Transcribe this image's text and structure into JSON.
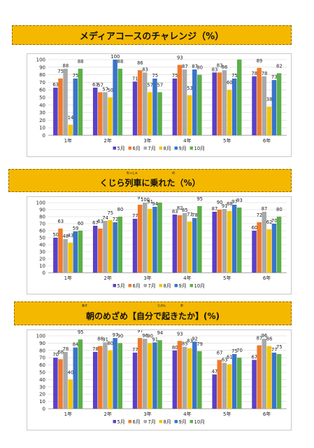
{
  "charts": [
    {
      "title": "メディアコースのチャレンジ（%）",
      "chart_data": {
        "type": "bar",
        "categories": [
          "1年",
          "2年",
          "3年",
          "4年",
          "5年",
          "6年"
        ],
        "series": [
          {
            "name": "5月",
            "values": [
              63,
              63,
              71,
              75,
              83,
              78
            ]
          },
          {
            "name": "6月",
            "values": [
              75,
              57,
              86,
              93,
              83,
              89
            ]
          },
          {
            "name": "7月",
            "values": [
              88,
              57,
              83,
              87,
              86,
              78
            ]
          },
          {
            "name": "8月",
            "values": [
              14,
              50,
              57,
              53,
              60,
              38
            ]
          },
          {
            "name": "9月",
            "values": [
              75,
              100,
              75,
              87,
              75,
              73
            ]
          },
          {
            "name": "10月",
            "values": [
              88,
              88,
              57,
              80,
              100,
              82
            ]
          }
        ],
        "ylim": [
          0,
          100
        ],
        "yticks": [
          0,
          10,
          20,
          30,
          40,
          50,
          60,
          70,
          80,
          90,
          100
        ],
        "colors": [
          "#5b40c8",
          "#f07a2a",
          "#a9a9a9",
          "#f5c400",
          "#3a74c8",
          "#5cb04a"
        ],
        "legend": "bottom"
      }
    },
    {
      "title": "くじら列車に乗れた（%）",
      "ruby": [
        {
          "text": "れっしゃ"
        },
        {
          "text": "の"
        }
      ],
      "chart_data": {
        "type": "bar",
        "categories": [
          "1年",
          "2年",
          "3年",
          "4年",
          "5年",
          "6年"
        ],
        "series": [
          {
            "name": "5月",
            "values": [
              50,
              67,
              77,
              83,
              87,
              60
            ]
          },
          {
            "name": "6月",
            "values": [
              63,
              63,
              97,
              82,
              90,
              72
            ]
          },
          {
            "name": "7月",
            "values": [
              48,
              74,
              100,
              85,
              91,
              87
            ]
          },
          {
            "name": "8月",
            "values": [
              43,
              75,
              91,
              73,
              88,
              62
            ]
          },
          {
            "name": "9月",
            "values": [
              59,
              72,
              94,
              78,
              97,
              70
            ]
          },
          {
            "name": "10月",
            "values": [
              60,
              80,
              100,
              95,
              93,
              80
            ]
          }
        ],
        "ylim": [
          0,
          100
        ],
        "yticks": [
          0,
          10,
          20,
          30,
          40,
          50,
          60,
          70,
          80,
          90,
          100
        ],
        "colors": [
          "#5b40c8",
          "#f07a2a",
          "#a9a9a9",
          "#f5c400",
          "#3a74c8",
          "#5cb04a"
        ],
        "legend": "bottom"
      }
    },
    {
      "title": "朝のめざめ【自分で起きたか】(%)",
      "ruby": [
        {
          "text": "あさ"
        },
        {
          "text": "じぶん"
        },
        {
          "text": "お"
        }
      ],
      "chart_data": {
        "type": "bar",
        "categories": [
          "1年",
          "2年",
          "3年",
          "4年",
          "5年",
          "6年"
        ],
        "series": [
          {
            "name": "5月",
            "values": [
              70,
              78,
              77,
              80,
              47,
              67
            ]
          },
          {
            "name": "6月",
            "values": [
              68,
              86,
              97,
              93,
              67,
              87
            ]
          },
          {
            "name": "7月",
            "values": [
              78,
              91,
              96,
              85,
              63,
              96
            ]
          },
          {
            "name": "8月",
            "values": [
              40,
              80,
              90,
              83,
              61,
              86
            ]
          },
          {
            "name": "9月",
            "values": [
              84,
              97,
              91,
              92,
              75,
              77
            ]
          },
          {
            "name": "10月",
            "values": [
              95,
              90,
              94,
              79,
              70,
              75
            ]
          }
        ],
        "ylim": [
          0,
          100
        ],
        "yticks": [
          0,
          10,
          20,
          30,
          40,
          50,
          60,
          70,
          80,
          90,
          100
        ],
        "colors": [
          "#5b40c8",
          "#f07a2a",
          "#a9a9a9",
          "#f5c400",
          "#3a74c8",
          "#5cb04a"
        ],
        "legend": "bottom"
      }
    }
  ]
}
